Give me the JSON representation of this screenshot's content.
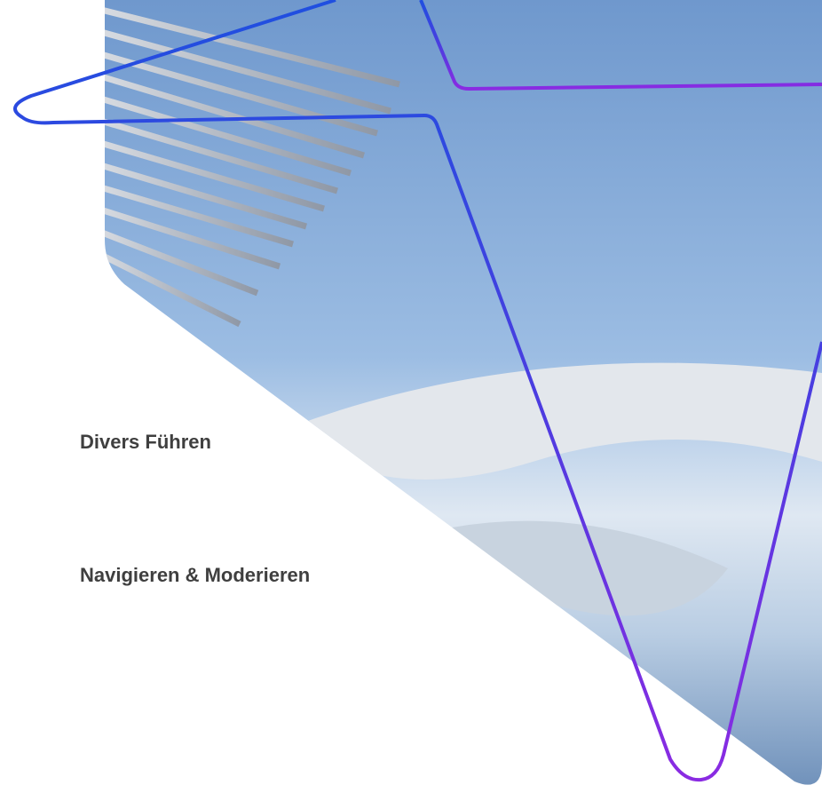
{
  "slide": {
    "items": [
      "Divers Führen",
      "Navigieren & Moderieren"
    ]
  }
}
